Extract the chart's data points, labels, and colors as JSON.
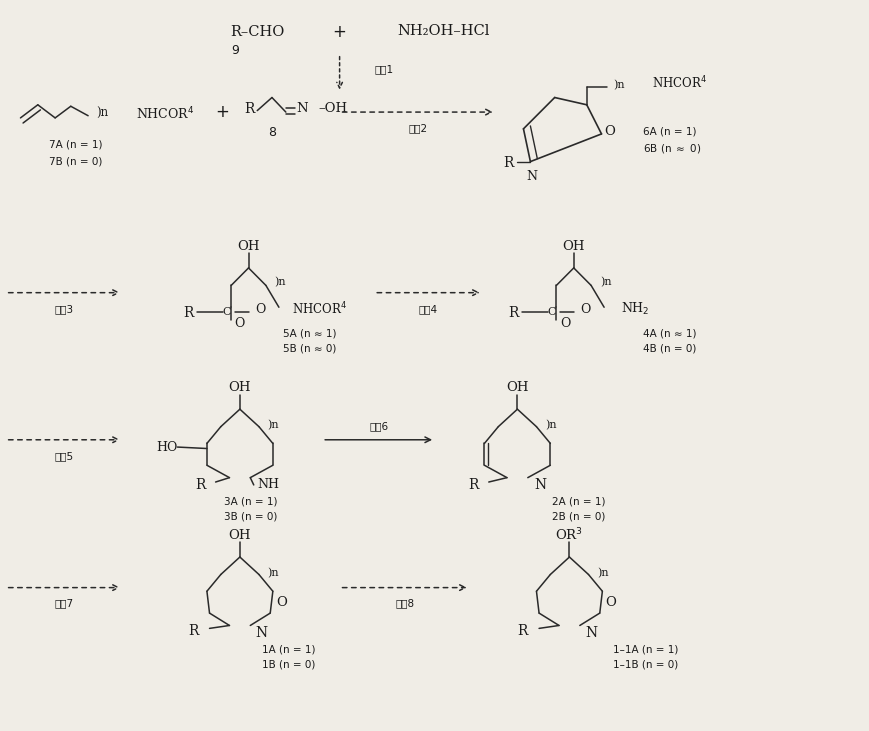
{
  "bg_color": "#f0ede6",
  "line_color": "#2a2a2a",
  "text_color": "#1a1a1a",
  "fig_width": 8.7,
  "fig_height": 7.31,
  "dpi": 100,
  "labels": {
    "r_cho": "R–CHO",
    "plus": "+",
    "nh2oh": "NH₂OH–HCl",
    "num9": "9",
    "step1": "工序1",
    "step2": "工序2",
    "step3": "工序3",
    "step4": "工序4",
    "step5": "工序5",
    "step6": "工序6",
    "step7": "工序7",
    "step8": "工序8",
    "num8": "8",
    "label7A": "7A (n = 1)",
    "label7B": "7B (n = 0)",
    "label6A": "6A (n = 1)",
    "label6B": "6B (n ≈ 0)",
    "label5A": "5A (n ≈ 1)",
    "label5B": "5B (n ≈ 0)",
    "label4A": "4A (n ≈ 1)",
    "label4B": "4B (n = 0)",
    "label3A": "3A (n = 1)",
    "label3B": "3B (n = 0)",
    "label2A": "2A (n = 1)",
    "label2B": "2B (n = 0)",
    "label1A": "1A (n = 1)",
    "label1B": "1B (n = 0)",
    "label11A": "1–1A (n = 1)",
    "label11B": "1–1B (n = 0)"
  }
}
